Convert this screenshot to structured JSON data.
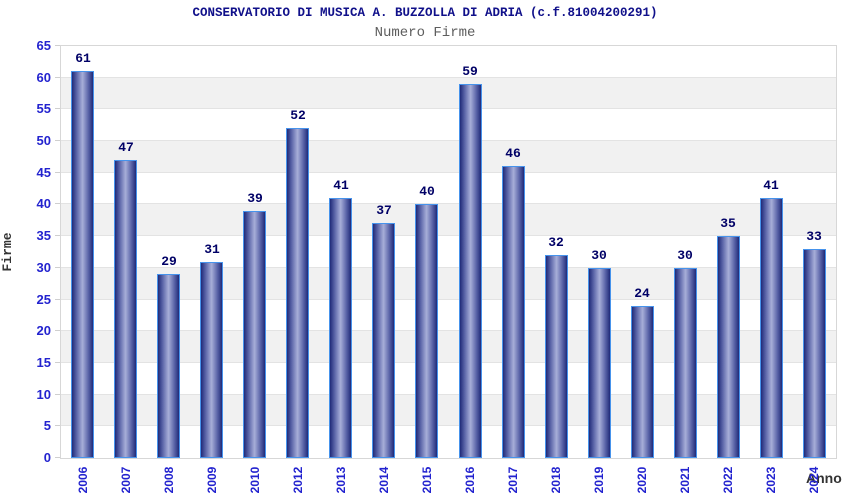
{
  "header": {
    "title": "CONSERVATORIO DI MUSICA A. BUZZOLLA DI ADRIA (c.f.81004200291)",
    "subtitle": "Numero Firme"
  },
  "chart_data": {
    "type": "bar",
    "title": "CONSERVATORIO DI MUSICA A. BUZZOLLA DI ADRIA (c.f.81004200291)",
    "subtitle": "Numero Firme",
    "xlabel": "Anno",
    "ylabel": "Firme",
    "categories": [
      "2006",
      "2007",
      "2008",
      "2009",
      "2010",
      "2012",
      "2013",
      "2014",
      "2015",
      "2016",
      "2017",
      "2018",
      "2019",
      "2020",
      "2021",
      "2022",
      "2023",
      "2024"
    ],
    "values": [
      61,
      47,
      29,
      31,
      39,
      52,
      41,
      37,
      40,
      59,
      46,
      32,
      30,
      24,
      30,
      35,
      41,
      33
    ],
    "ylim": [
      0,
      65
    ],
    "yticks": [
      0,
      5,
      10,
      15,
      20,
      25,
      30,
      35,
      40,
      45,
      50,
      55,
      60,
      65
    ],
    "grid": "horizontal gridlines every 5 units with alternating white/light-gray bands",
    "legend": "none",
    "bar_labels_shown": true,
    "x_labels_rotation_deg": 90
  },
  "colors": {
    "background": "#ffffff",
    "title": "#10108a",
    "subtitle": "#5e5e5e",
    "axis_title": "#333333",
    "tick_label": "#2323cf",
    "value_label": "#000066",
    "bar_border": "#4693ec",
    "bar_edge": "#202a78",
    "bar_mid": "#5a64a8",
    "bar_center": "#a7aed8",
    "band_gray": "#f1f1f1",
    "band_white": "#ffffff",
    "gridline": "#e3e3e3",
    "plot_border": "#d7d7d7",
    "tick_mark": "#cfcfcf"
  }
}
